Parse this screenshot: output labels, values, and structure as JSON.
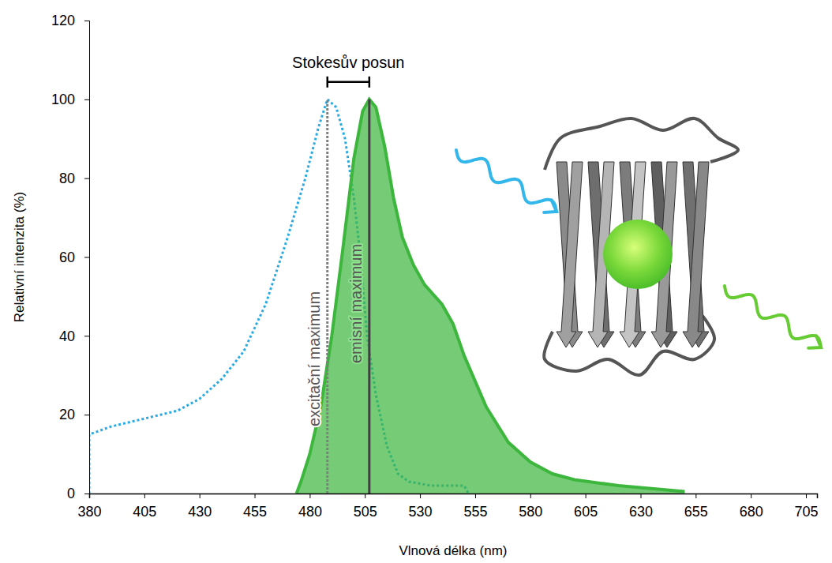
{
  "chart_data": {
    "type": "line",
    "x_label": "Vlnová délka (nm)",
    "y_label": "Relativní intenzita (%)",
    "xlim": [
      380,
      710
    ],
    "xticks": [
      380,
      405,
      430,
      455,
      480,
      505,
      530,
      555,
      580,
      605,
      630,
      655,
      680,
      705
    ],
    "ylim": [
      0,
      120
    ],
    "yticks": [
      0,
      20,
      40,
      60,
      80,
      100,
      120
    ],
    "grid": false,
    "series": [
      {
        "type": "line",
        "line_style": "dotted",
        "color": "#2aaae2",
        "x": [
          380,
          380,
          390,
          405,
          420,
          430,
          440,
          450,
          460,
          470,
          478,
          484,
          488,
          492,
          496,
          500,
          503,
          506,
          510,
          515,
          520,
          525,
          535,
          550,
          552
        ],
        "values": [
          0,
          15,
          17,
          19,
          21,
          24,
          29,
          36,
          48,
          65,
          80,
          93,
          100,
          98,
          90,
          75,
          60,
          40,
          25,
          12,
          5,
          3,
          2,
          2,
          0
        ]
      },
      {
        "type": "area",
        "line_style": "solid",
        "color": "#3cb63c",
        "x": [
          474,
          476,
          480,
          485,
          490,
          495,
          500,
          504,
          507,
          510,
          514,
          518,
          522,
          527,
          532,
          540,
          545,
          550,
          560,
          570,
          580,
          590,
          600,
          620,
          640,
          650
        ],
        "values": [
          0,
          3,
          10,
          22,
          40,
          62,
          85,
          97,
          100,
          98,
          88,
          75,
          65,
          58,
          53,
          48,
          43,
          35,
          22,
          13,
          8,
          5,
          3.5,
          2,
          1,
          0.5
        ]
      }
    ],
    "annotations": [
      {
        "text": "excitační maximum",
        "x": 488,
        "line_style": "dotted"
      },
      {
        "text": "emisní maximum",
        "x": 507,
        "line_style": "solid"
      }
    ],
    "stokes_shift": {
      "text": "Stokesův posun",
      "from": 488,
      "to": 507
    }
  }
}
